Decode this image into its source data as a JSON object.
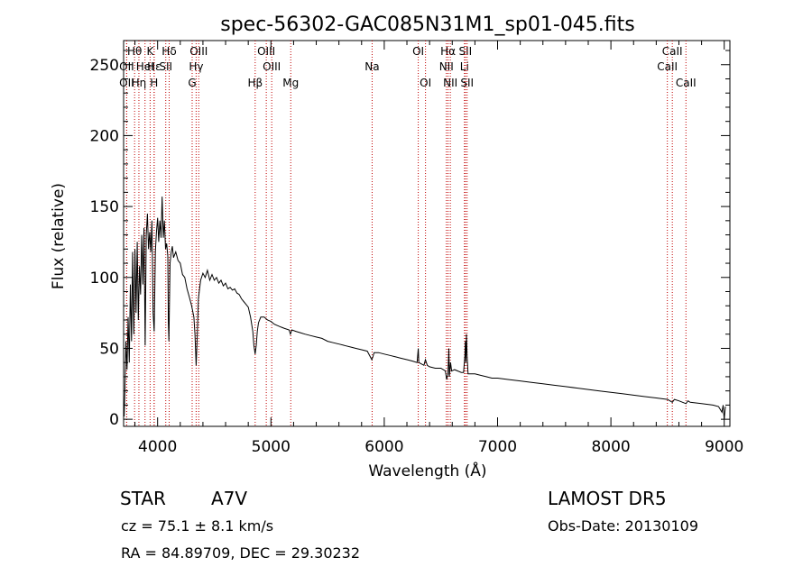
{
  "chart_data": {
    "type": "line",
    "title": "spec-56302-GAC085N31M1_sp01-045.fits",
    "xlabel": "Wavelength (Å)",
    "ylabel": "Flux (relative)",
    "xlim": [
      3700,
      9050
    ],
    "ylim": [
      -5,
      267
    ],
    "xticks": [
      4000,
      5000,
      6000,
      7000,
      8000,
      9000
    ],
    "yticks": [
      0,
      50,
      100,
      150,
      200,
      250
    ],
    "grid": false,
    "series": [
      {
        "points": [
          [
            3700,
            12
          ],
          [
            3705,
            2
          ],
          [
            3712,
            22
          ],
          [
            3720,
            55
          ],
          [
            3730,
            35
          ],
          [
            3740,
            72
          ],
          [
            3750,
            40
          ],
          [
            3760,
            95
          ],
          [
            3770,
            55
          ],
          [
            3780,
            118
          ],
          [
            3790,
            60
          ],
          [
            3800,
            120
          ],
          [
            3810,
            75
          ],
          [
            3820,
            125
          ],
          [
            3830,
            70
          ],
          [
            3840,
            108
          ],
          [
            3850,
            88
          ],
          [
            3860,
            130
          ],
          [
            3870,
            95
          ],
          [
            3880,
            135
          ],
          [
            3890,
            52
          ],
          [
            3900,
            130
          ],
          [
            3910,
            145
          ],
          [
            3920,
            120
          ],
          [
            3930,
            132
          ],
          [
            3940,
            118
          ],
          [
            3950,
            140
          ],
          [
            3960,
            75
          ],
          [
            3970,
            62
          ],
          [
            3980,
            118
          ],
          [
            3990,
            132
          ],
          [
            4000,
            142
          ],
          [
            4010,
            125
          ],
          [
            4020,
            140
          ],
          [
            4030,
            128
          ],
          [
            4040,
            157
          ],
          [
            4050,
            128
          ],
          [
            4060,
            140
          ],
          [
            4070,
            120
          ],
          [
            4080,
            124
          ],
          [
            4090,
            115
          ],
          [
            4095,
            68
          ],
          [
            4100,
            55
          ],
          [
            4110,
            110
          ],
          [
            4120,
            118
          ],
          [
            4130,
            122
          ],
          [
            4140,
            114
          ],
          [
            4160,
            118
          ],
          [
            4180,
            112
          ],
          [
            4200,
            110
          ],
          [
            4220,
            102
          ],
          [
            4240,
            100
          ],
          [
            4260,
            92
          ],
          [
            4280,
            86
          ],
          [
            4300,
            80
          ],
          [
            4320,
            72
          ],
          [
            4330,
            60
          ],
          [
            4340,
            38
          ],
          [
            4350,
            58
          ],
          [
            4360,
            85
          ],
          [
            4370,
            92
          ],
          [
            4380,
            98
          ],
          [
            4400,
            103
          ],
          [
            4420,
            100
          ],
          [
            4440,
            105
          ],
          [
            4460,
            98
          ],
          [
            4480,
            102
          ],
          [
            4500,
            98
          ],
          [
            4520,
            100
          ],
          [
            4540,
            96
          ],
          [
            4560,
            98
          ],
          [
            4580,
            94
          ],
          [
            4600,
            96
          ],
          [
            4620,
            92
          ],
          [
            4640,
            93
          ],
          [
            4660,
            91
          ],
          [
            4680,
            92
          ],
          [
            4700,
            89
          ],
          [
            4720,
            88
          ],
          [
            4740,
            85
          ],
          [
            4760,
            83
          ],
          [
            4780,
            81
          ],
          [
            4800,
            79
          ],
          [
            4820,
            72
          ],
          [
            4840,
            62
          ],
          [
            4850,
            52
          ],
          [
            4861,
            46
          ],
          [
            4870,
            52
          ],
          [
            4880,
            62
          ],
          [
            4890,
            68
          ],
          [
            4910,
            72
          ],
          [
            4940,
            72
          ],
          [
            4970,
            70
          ],
          [
            5000,
            69
          ],
          [
            5030,
            67
          ],
          [
            5060,
            66
          ],
          [
            5090,
            65
          ],
          [
            5120,
            64
          ],
          [
            5160,
            63
          ],
          [
            5172,
            60
          ],
          [
            5185,
            63
          ],
          [
            5220,
            62
          ],
          [
            5260,
            61
          ],
          [
            5300,
            60
          ],
          [
            5350,
            59
          ],
          [
            5400,
            58
          ],
          [
            5450,
            57
          ],
          [
            5500,
            55
          ],
          [
            5550,
            54
          ],
          [
            5600,
            53
          ],
          [
            5650,
            52
          ],
          [
            5700,
            51
          ],
          [
            5750,
            50
          ],
          [
            5800,
            49
          ],
          [
            5850,
            48
          ],
          [
            5890,
            42
          ],
          [
            5900,
            44
          ],
          [
            5910,
            47
          ],
          [
            5950,
            47
          ],
          [
            6000,
            46
          ],
          [
            6050,
            45
          ],
          [
            6100,
            44
          ],
          [
            6150,
            43
          ],
          [
            6200,
            42
          ],
          [
            6250,
            41
          ],
          [
            6290,
            40
          ],
          [
            6300,
            50
          ],
          [
            6305,
            40
          ],
          [
            6350,
            38
          ],
          [
            6363,
            42
          ],
          [
            6380,
            38
          ],
          [
            6400,
            37
          ],
          [
            6450,
            36
          ],
          [
            6500,
            36
          ],
          [
            6540,
            34
          ],
          [
            6550,
            28
          ],
          [
            6562,
            32
          ],
          [
            6570,
            50
          ],
          [
            6575,
            30
          ],
          [
            6585,
            40
          ],
          [
            6595,
            34
          ],
          [
            6620,
            35
          ],
          [
            6650,
            34
          ],
          [
            6680,
            33
          ],
          [
            6700,
            33
          ],
          [
            6712,
            45
          ],
          [
            6716,
            55
          ],
          [
            6720,
            40
          ],
          [
            6725,
            60
          ],
          [
            6731,
            45
          ],
          [
            6740,
            32
          ],
          [
            6800,
            32
          ],
          [
            6850,
            31
          ],
          [
            6900,
            30
          ],
          [
            6950,
            29
          ],
          [
            7000,
            29
          ],
          [
            7100,
            28
          ],
          [
            7200,
            27
          ],
          [
            7300,
            26
          ],
          [
            7400,
            25
          ],
          [
            7500,
            24
          ],
          [
            7600,
            23
          ],
          [
            7700,
            22
          ],
          [
            7800,
            21
          ],
          [
            7900,
            20
          ],
          [
            8000,
            19
          ],
          [
            8100,
            18
          ],
          [
            8200,
            17
          ],
          [
            8300,
            16
          ],
          [
            8400,
            15
          ],
          [
            8500,
            14
          ],
          [
            8542,
            12
          ],
          [
            8560,
            14
          ],
          [
            8600,
            13
          ],
          [
            8662,
            11
          ],
          [
            8680,
            13
          ],
          [
            8700,
            12
          ],
          [
            8800,
            11
          ],
          [
            8900,
            10
          ],
          [
            8950,
            9
          ],
          [
            8980,
            5
          ],
          [
            8990,
            10
          ],
          [
            9000,
            0
          ],
          [
            9010,
            9
          ]
        ]
      }
    ],
    "line_markers": [
      {
        "label": "Hθ",
        "x": 3797,
        "row": 0
      },
      {
        "label": "K",
        "x": 3934,
        "row": 0
      },
      {
        "label": "Hδ",
        "x": 4102,
        "row": 0
      },
      {
        "label": "OIII",
        "x": 4363,
        "row": 0
      },
      {
        "label": "OIII",
        "x": 4959,
        "row": 0
      },
      {
        "label": "OI",
        "x": 6300,
        "row": 0
      },
      {
        "label": "Hα",
        "x": 6563,
        "row": 0
      },
      {
        "label": "SII",
        "x": 6716,
        "row": 0
      },
      {
        "label": "CaII",
        "x": 8542,
        "row": 0
      },
      {
        "label": "OII",
        "x": 3727,
        "row": 1
      },
      {
        "label": "Hε",
        "x": 3970,
        "row": 1
      },
      {
        "label": "HeI",
        "x": 3889,
        "row": 1
      },
      {
        "label": "SII",
        "x": 4072,
        "row": 1
      },
      {
        "label": "Hγ",
        "x": 4340,
        "row": 1
      },
      {
        "label": "OIII",
        "x": 5007,
        "row": 1
      },
      {
        "label": "Na",
        "x": 5893,
        "row": 1
      },
      {
        "label": "NII",
        "x": 6548,
        "row": 1
      },
      {
        "label": "Li",
        "x": 6708,
        "row": 1
      },
      {
        "label": "CaII",
        "x": 8498,
        "row": 1
      },
      {
        "label": "OII",
        "x": 3727,
        "row": 2
      },
      {
        "label": "Hη",
        "x": 3835,
        "row": 2
      },
      {
        "label": "H",
        "x": 3969,
        "row": 2
      },
      {
        "label": "G",
        "x": 4305,
        "row": 2
      },
      {
        "label": "Hβ",
        "x": 4861,
        "row": 2
      },
      {
        "label": "Mg",
        "x": 5175,
        "row": 2
      },
      {
        "label": "OI",
        "x": 6364,
        "row": 2
      },
      {
        "label": "NII",
        "x": 6583,
        "row": 2
      },
      {
        "label": "SII",
        "x": 6731,
        "row": 2
      },
      {
        "label": "CaII",
        "x": 8662,
        "row": 2
      }
    ]
  },
  "info": {
    "class_label": "STAR",
    "subclass_label": "A7V",
    "survey": "LAMOST DR5",
    "redshift": "cz = 75.1 ± 8.1 km/s",
    "obs_date": "Obs-Date: 20130109",
    "coords": "RA =  84.89709, DEC =  29.30232"
  }
}
